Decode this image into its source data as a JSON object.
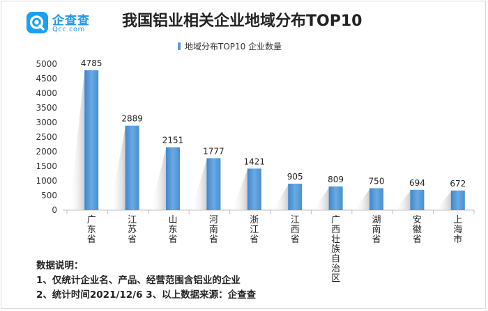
{
  "logo": {
    "name": "企查查",
    "domain": "Qcc.com",
    "brand_color": "#1aa0f0"
  },
  "chart_data": {
    "type": "bar",
    "title": "我国铝业相关企业地域分布TOP10",
    "legend": [
      "地域分布TOP10 企业数量"
    ],
    "legend_placement": "top-center",
    "categories": [
      "广东省",
      "江苏省",
      "山东省",
      "河南省",
      "浙江省",
      "江西省",
      "广西壮族自治区",
      "湖南省",
      "安徽省",
      "上海市"
    ],
    "series": [
      {
        "name": "地域分布TOP10 企业数量",
        "values": [
          4785,
          2889,
          2151,
          1777,
          1421,
          905,
          809,
          750,
          694,
          672
        ]
      }
    ],
    "data_labels": [
      "4785",
      "2889",
      "2151",
      "1777",
      "1421",
      "905",
      "809",
      "750",
      "694",
      "672"
    ],
    "yticks": [
      "0",
      "500",
      "1000",
      "1500",
      "2000",
      "2500",
      "3000",
      "3500",
      "4000",
      "4500",
      "5000"
    ],
    "ylim": [
      0,
      5000
    ],
    "grid": false,
    "bar_color": "#5b9bd5",
    "xlabel": "",
    "ylabel": ""
  },
  "notes": {
    "heading": "数据说明：",
    "line1": "1、仅统计企业名、产品、经营范围含铝业的企业",
    "line2": "2、统计时间2021/12/6   3、以上数据来源：企查查"
  }
}
